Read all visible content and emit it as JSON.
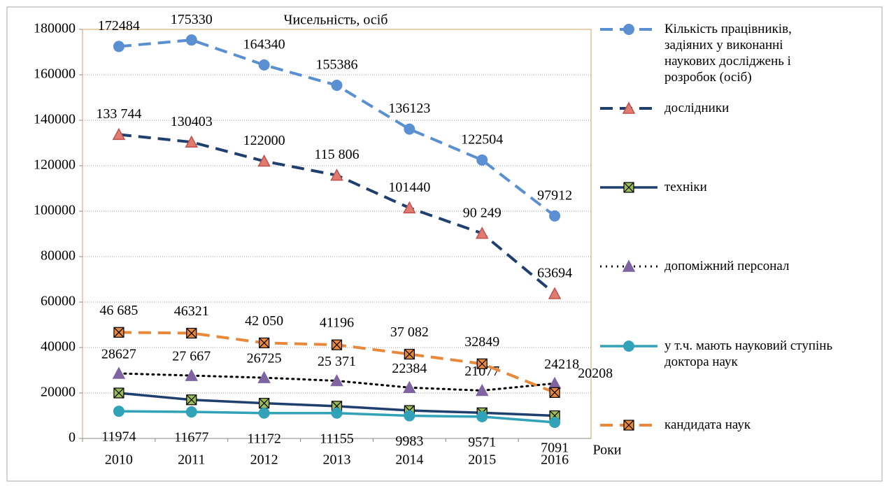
{
  "chart_data": {
    "type": "line",
    "y_axis_label": "Чисельність, осіб",
    "x_axis_label": "Роки",
    "categories": [
      "2010",
      "2011",
      "2012",
      "2013",
      "2014",
      "2015",
      "2016"
    ],
    "ylim": [
      0,
      180000
    ],
    "yticks": [
      0,
      20000,
      40000,
      60000,
      80000,
      100000,
      120000,
      140000,
      160000,
      180000
    ],
    "grid": true,
    "legend": "right",
    "series": [
      {
        "name": "Кількість працівників, задіяних у виконанні наукових досліджень і розробок (осіб)",
        "color": "#5a8fd2",
        "dash": "dashed",
        "marker": "circle",
        "values": [
          172484,
          175330,
          164340,
          155386,
          136123,
          122504,
          97912
        ]
      },
      {
        "name": "дослідники",
        "color": "#1f3f6e",
        "dash": "dashed",
        "marker": "triangle",
        "marker_color": "#e07b6f",
        "values": [
          133744,
          130403,
          122000,
          115806,
          101440,
          90249,
          63694
        ],
        "value_labels": [
          "133 744",
          "130403",
          "122000",
          "115 806",
          "101440",
          "90 249",
          "63694"
        ]
      },
      {
        "name": "техніки",
        "color": "#1f3f6e",
        "dash": "solid",
        "marker": "square-x",
        "marker_color": "#9bbb59",
        "values": [
          20000,
          17000,
          15500,
          14200,
          12300,
          11300,
          10000
        ]
      },
      {
        "name": "допоміжний персонал",
        "color": "#000000",
        "dash": "dotted",
        "marker": "triangle",
        "marker_color": "#8064a2",
        "values": [
          28627,
          27667,
          26725,
          25371,
          22384,
          21077,
          24218
        ],
        "value_labels": [
          "28627",
          "27 667",
          "26725",
          "25 371",
          "22384",
          "21077",
          "24218"
        ]
      },
      {
        "name": "у т.ч. мають науковий ступінь доктора наук",
        "color": "#31a2b8",
        "dash": "solid",
        "marker": "circle",
        "values": [
          11974,
          11677,
          11172,
          11155,
          9983,
          9571,
          7091
        ]
      },
      {
        "name": "кандидата наук",
        "color": "#e8883a",
        "dash": "dashed",
        "marker": "square-x",
        "marker_color": "#e8883a",
        "values": [
          46685,
          46321,
          42050,
          41196,
          37082,
          32849,
          20208
        ],
        "value_labels": [
          "46 685",
          "46321",
          "42 050",
          "41196",
          "37 082",
          "32849",
          "20208"
        ]
      }
    ]
  }
}
